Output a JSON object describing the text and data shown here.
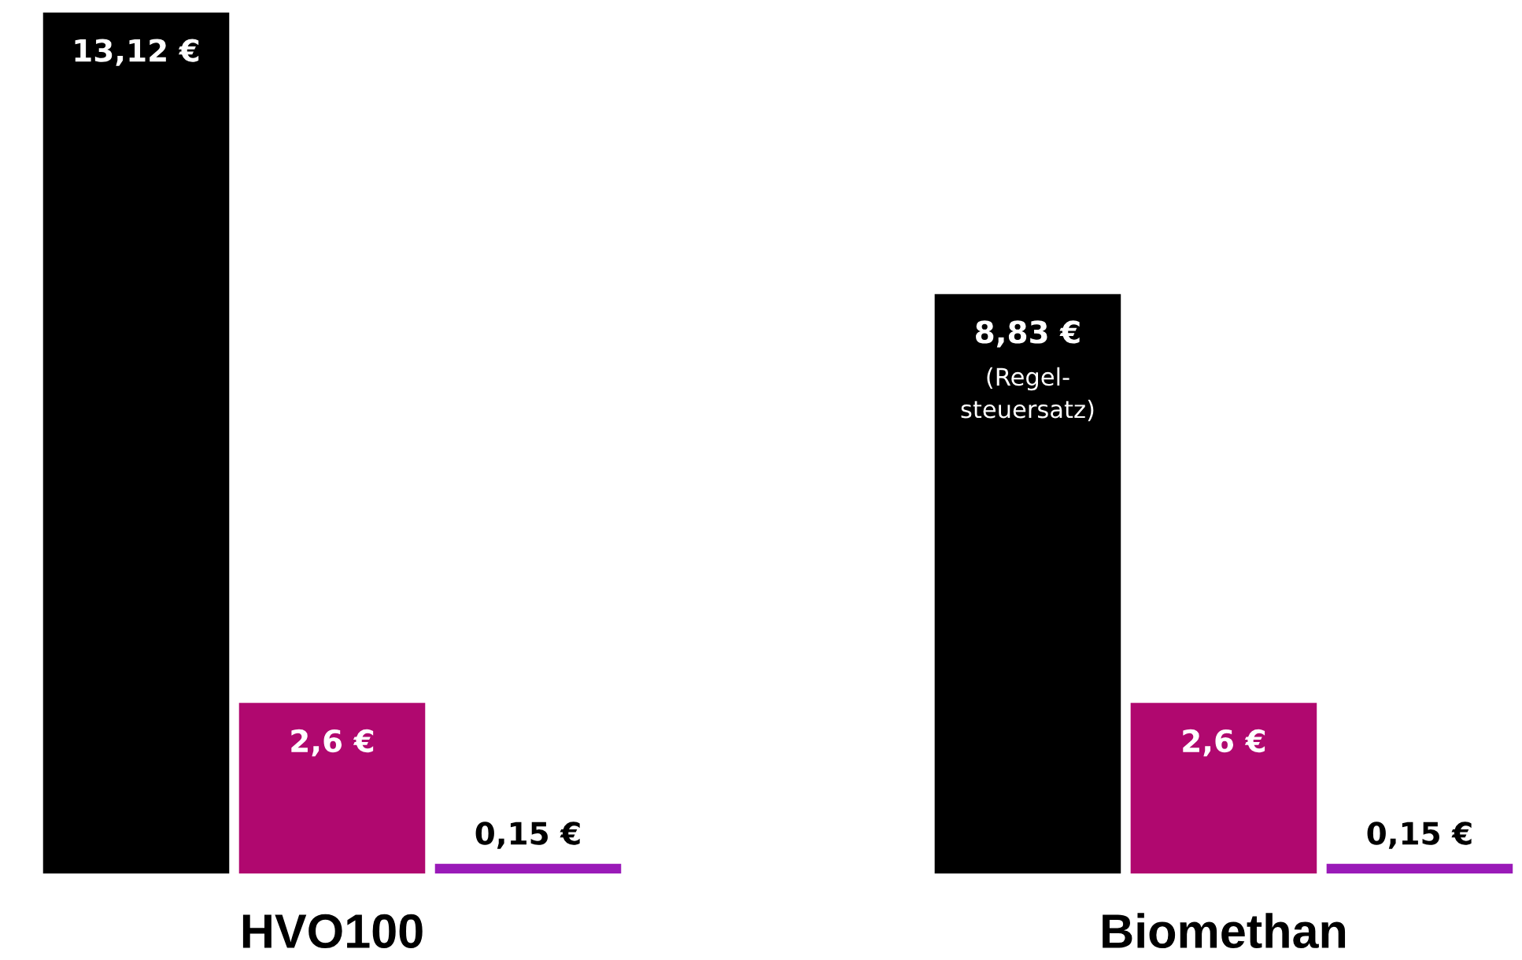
{
  "chart_data": {
    "type": "bar",
    "categories": [
      "HVO100",
      "Biomethan"
    ],
    "series": [
      {
        "color": "#000000",
        "values": [
          13.12,
          8.83
        ],
        "value_labels": [
          "13,12 €",
          "8,83 €"
        ]
      },
      {
        "color": "#b0086f",
        "values": [
          2.6,
          2.6
        ],
        "value_labels": [
          "2,6 €",
          "2,6 €"
        ]
      },
      {
        "color": "#9a1ab8",
        "values": [
          0.15,
          0.15
        ],
        "value_labels": [
          "0,15 €",
          "0,15 €"
        ]
      }
    ],
    "annotations": [
      "(Regel-\nsteuersatz)"
    ],
    "grid": false,
    "legend": false
  }
}
